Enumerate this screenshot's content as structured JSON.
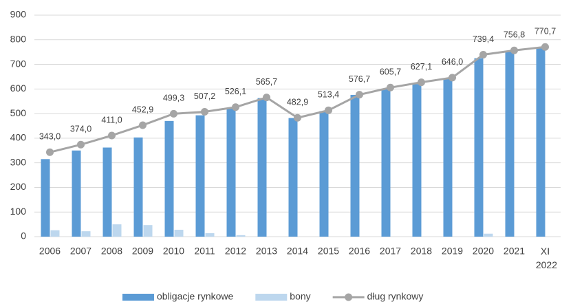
{
  "chart_data": {
    "type": "bar-line",
    "categories": [
      "2006",
      "2007",
      "2008",
      "2009",
      "2010",
      "2011",
      "2012",
      "2013",
      "2014",
      "2015",
      "2016",
      "2017",
      "2018",
      "2019",
      "2020",
      "2021",
      "XI 2022"
    ],
    "series": [
      {
        "name": "obligacje rynkowe",
        "type": "bar",
        "color": "#5b9bd5",
        "values": [
          315,
          350,
          362,
          403,
          470,
          493,
          520,
          563,
          482,
          510,
          576,
          600,
          620,
          640,
          725,
          752,
          765
        ]
      },
      {
        "name": "bony",
        "type": "bar",
        "color": "#bdd7ee",
        "values": [
          26,
          22,
          50,
          47,
          28,
          14,
          6,
          0,
          0,
          0,
          0,
          0,
          0,
          0,
          12,
          0,
          0
        ]
      },
      {
        "name": "dług rynkowy",
        "type": "line",
        "color": "#a5a5a5",
        "values": [
          343.0,
          374.0,
          411.0,
          452.9,
          499.3,
          507.2,
          526.1,
          565.7,
          482.9,
          513.4,
          576.7,
          605.7,
          627.1,
          646.0,
          739.4,
          756.8,
          770.7
        ],
        "value_labels": [
          "343,0",
          "374,0",
          "411,0",
          "452,9",
          "499,3",
          "507,2",
          "526,1",
          "565,7",
          "482,9",
          "513,4",
          "576,7",
          "605,7",
          "627,1",
          "646,0",
          "739,4",
          "756,8",
          "770,7"
        ]
      }
    ],
    "ylim": [
      0,
      900
    ],
    "yticks": [
      0,
      100,
      200,
      300,
      400,
      500,
      600,
      700,
      800,
      900
    ],
    "grid": true
  }
}
